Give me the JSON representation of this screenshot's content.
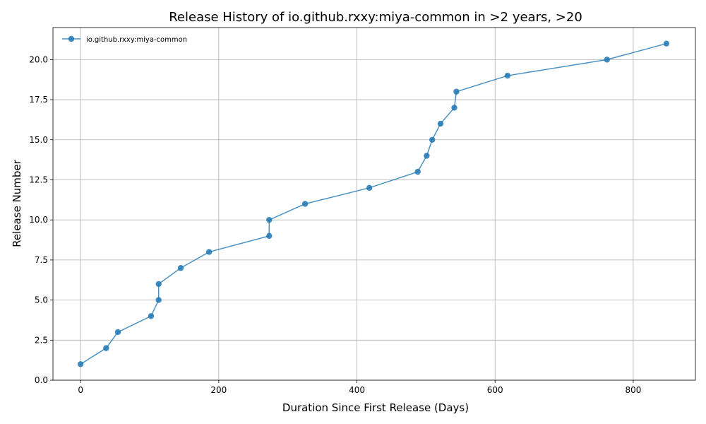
{
  "chart_data": {
    "type": "line",
    "title": "Release History of io.github.rxxy:miya-common in >2 years, >20",
    "xlabel": "Duration Since First Release (Days)",
    "ylabel": "Release Number",
    "xlim": [
      -40,
      890
    ],
    "ylim": [
      0,
      22
    ],
    "xticks": [
      0,
      200,
      400,
      600,
      800
    ],
    "xtick_labels": [
      "0",
      "200",
      "400",
      "600",
      "800"
    ],
    "yticks": [
      0.0,
      2.5,
      5.0,
      7.5,
      10.0,
      12.5,
      15.0,
      17.5,
      20.0
    ],
    "ytick_labels": [
      "0.0",
      "2.5",
      "5.0",
      "7.5",
      "10.0",
      "12.5",
      "15.0",
      "17.5",
      "20.0"
    ],
    "grid": true,
    "legend_position": "top-left",
    "series": [
      {
        "name": "io.github.rxxy:miya-common",
        "color": "#1f77b4",
        "marker": "circle",
        "points": [
          {
            "x": 0,
            "y": 1
          },
          {
            "x": 37,
            "y": 2
          },
          {
            "x": 54,
            "y": 3
          },
          {
            "x": 102,
            "y": 4
          },
          {
            "x": 113,
            "y": 5
          },
          {
            "x": 113,
            "y": 6
          },
          {
            "x": 145,
            "y": 7
          },
          {
            "x": 186,
            "y": 8
          },
          {
            "x": 273,
            "y": 9
          },
          {
            "x": 273,
            "y": 10
          },
          {
            "x": 325,
            "y": 11
          },
          {
            "x": 418,
            "y": 12
          },
          {
            "x": 488,
            "y": 13
          },
          {
            "x": 501,
            "y": 14
          },
          {
            "x": 509,
            "y": 15
          },
          {
            "x": 521,
            "y": 16
          },
          {
            "x": 541,
            "y": 17
          },
          {
            "x": 544,
            "y": 18
          },
          {
            "x": 618,
            "y": 19
          },
          {
            "x": 762,
            "y": 20
          },
          {
            "x": 848,
            "y": 21
          }
        ]
      }
    ]
  }
}
